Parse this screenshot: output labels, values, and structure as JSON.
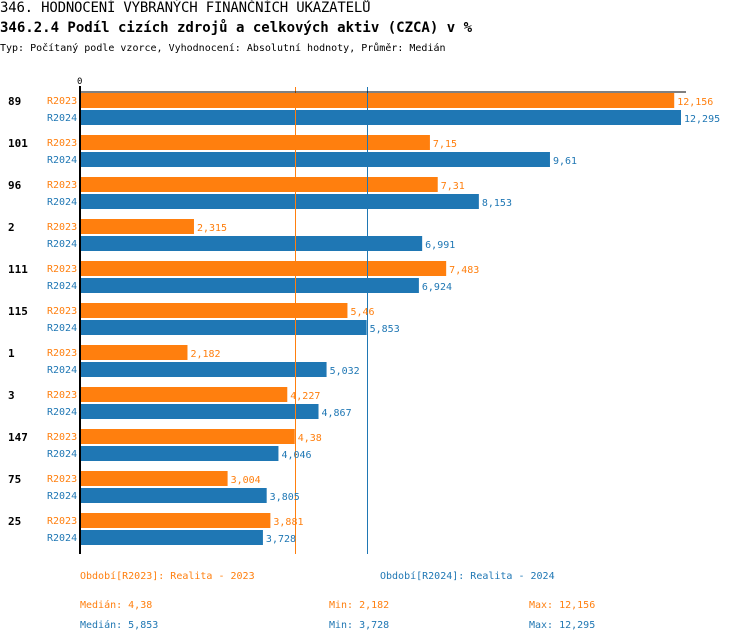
{
  "header": {
    "title": "346. HODNOCENÍ VYBRANÝCH FINANČNÍCH UKAZATELŮ",
    "subtitle": "346.2.4 Podíl cizích zdrojů a celkových aktiv (CZCA) v %",
    "info": "Typ: Počítaný podle vzorce, Vyhodnocení: Absolutní hodnoty, Průměr: Medián"
  },
  "colors": {
    "R2023": "#ff7f0e",
    "R2024": "#1f77b4",
    "axis": "#000000"
  },
  "chart_data": {
    "type": "bar",
    "orientation": "horizontal",
    "title": "346.2.4 Podíl cizích zdrojů a celkových aktiv (CZCA) v %",
    "xlabel": "",
    "ylabel": "",
    "x_tick_labels": [
      "0"
    ],
    "xlim": [
      0,
      12.295
    ],
    "grid": false,
    "categories": [
      "89",
      "101",
      "96",
      "2",
      "111",
      "115",
      "1",
      "3",
      "147",
      "75",
      "25"
    ],
    "series": [
      {
        "name": "R2023",
        "values": [
          12.156,
          7.15,
          7.31,
          2.315,
          7.483,
          5.46,
          2.182,
          4.227,
          4.38,
          3.004,
          3.881
        ],
        "labels": [
          "12,156",
          "7,15",
          "7,31",
          "2,315",
          "7,483",
          "5,46",
          "2,182",
          "4,227",
          "4,38",
          "3,004",
          "3,881"
        ]
      },
      {
        "name": "R2024",
        "values": [
          12.295,
          9.61,
          8.153,
          6.991,
          6.924,
          5.853,
          5.032,
          4.867,
          4.046,
          3.805,
          3.728
        ],
        "labels": [
          "12,295",
          "9,61",
          "8,153",
          "6,991",
          "6,924",
          "5,853",
          "5,032",
          "4,867",
          "4,046",
          "3,805",
          "3,728"
        ]
      }
    ],
    "reference_lines": [
      {
        "series": "R2023",
        "type": "median",
        "value": 4.38
      },
      {
        "series": "R2024",
        "type": "median",
        "value": 5.853
      }
    ]
  },
  "legend": {
    "R2023": "Období[R2023]: Realita - 2023",
    "R2024": "Období[R2024]: Realita - 2024"
  },
  "stats": {
    "R2023": {
      "median": "Medián: 4,38",
      "min": "Min: 2,182",
      "max": "Max: 12,156"
    },
    "R2024": {
      "median": "Medián: 5,853",
      "min": "Min: 3,728",
      "max": "Max: 12,295"
    }
  }
}
